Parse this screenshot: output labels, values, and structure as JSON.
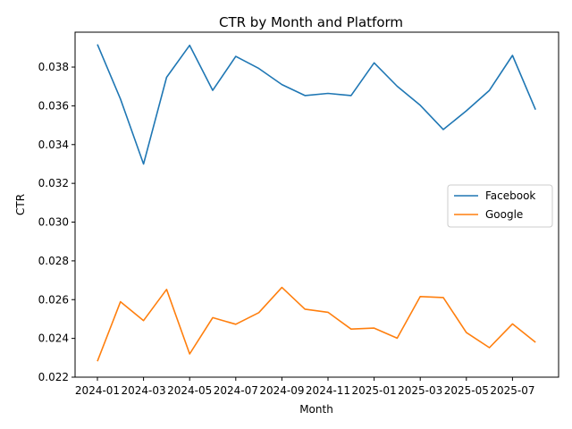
{
  "chart_data": {
    "type": "line",
    "title": "CTR by Month and Platform",
    "xlabel": "Month",
    "ylabel": "CTR",
    "x": [
      "2024-01",
      "2024-02",
      "2024-03",
      "2024-04",
      "2024-05",
      "2024-06",
      "2024-07",
      "2024-08",
      "2024-09",
      "2024-10",
      "2024-11",
      "2024-12",
      "2025-01",
      "2025-02",
      "2025-03",
      "2025-04",
      "2025-05",
      "2025-06",
      "2025-07",
      "2025-08"
    ],
    "x_ticks": [
      "2024-01",
      "2024-03",
      "2024-05",
      "2024-07",
      "2024-09",
      "2024-11",
      "2025-01",
      "2025-03",
      "2025-05",
      "2025-07"
    ],
    "y_ticks": [
      0.022,
      0.024,
      0.026,
      0.028,
      0.03,
      0.032,
      0.034,
      0.036,
      0.038
    ],
    "y_tick_labels": [
      "0.022",
      "0.024",
      "0.026",
      "0.028",
      "0.030",
      "0.032",
      "0.034",
      "0.036",
      "0.038"
    ],
    "ylim": [
      0.022,
      0.0398
    ],
    "grid": false,
    "legend_position": "center-right",
    "series": [
      {
        "name": "Facebook",
        "color": "#1f77b4",
        "values": [
          0.03917,
          0.03635,
          0.033,
          0.03747,
          0.03912,
          0.0368,
          0.03855,
          0.03793,
          0.0371,
          0.03653,
          0.03664,
          0.03653,
          0.03822,
          0.03701,
          0.03603,
          0.03478,
          0.03574,
          0.0368,
          0.0386,
          0.0358
        ]
      },
      {
        "name": "Google",
        "color": "#ff7f0e",
        "values": [
          0.02282,
          0.02589,
          0.02492,
          0.02653,
          0.0232,
          0.02507,
          0.02473,
          0.02533,
          0.02663,
          0.02551,
          0.02535,
          0.02448,
          0.02453,
          0.02401,
          0.02616,
          0.02611,
          0.0243,
          0.02352,
          0.02475,
          0.0238
        ]
      }
    ]
  }
}
